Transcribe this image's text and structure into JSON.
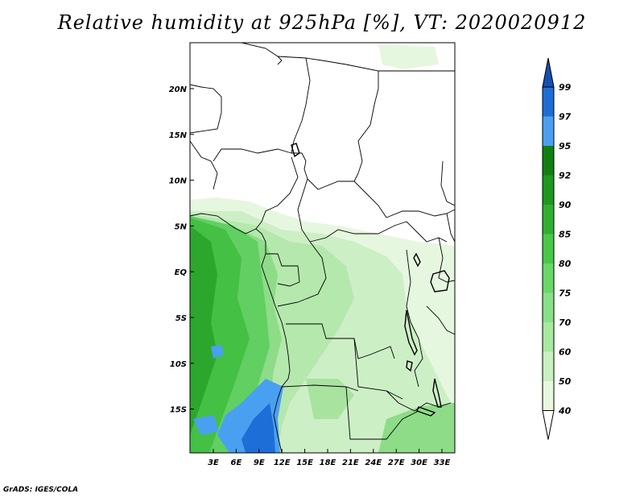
{
  "title": "Relative humidity at 925hPa [%], VT: 2020020912",
  "credit": "GrADS: IGES/COLA",
  "map": {
    "lon_labels": [
      "3E",
      "6E",
      "9E",
      "12E",
      "15E",
      "18E",
      "21E",
      "24E",
      "27E",
      "30E",
      "33E"
    ],
    "lat_labels": [
      "20N",
      "15N",
      "10N",
      "5N",
      "EQ",
      "5S",
      "10S",
      "15S"
    ]
  },
  "colorbar": {
    "levels": [
      "40",
      "50",
      "60",
      "70",
      "75",
      "80",
      "85",
      "90",
      "92",
      "95",
      "97",
      "99"
    ],
    "colors": [
      "#ffffff",
      "#e8f8e0",
      "#c8f0c0",
      "#a8e8a0",
      "#88e088",
      "#68d868",
      "#48c848",
      "#30b030",
      "#1e981e",
      "#108010",
      "#4aa0f0",
      "#1e6ed8",
      "#1450b0"
    ]
  }
}
